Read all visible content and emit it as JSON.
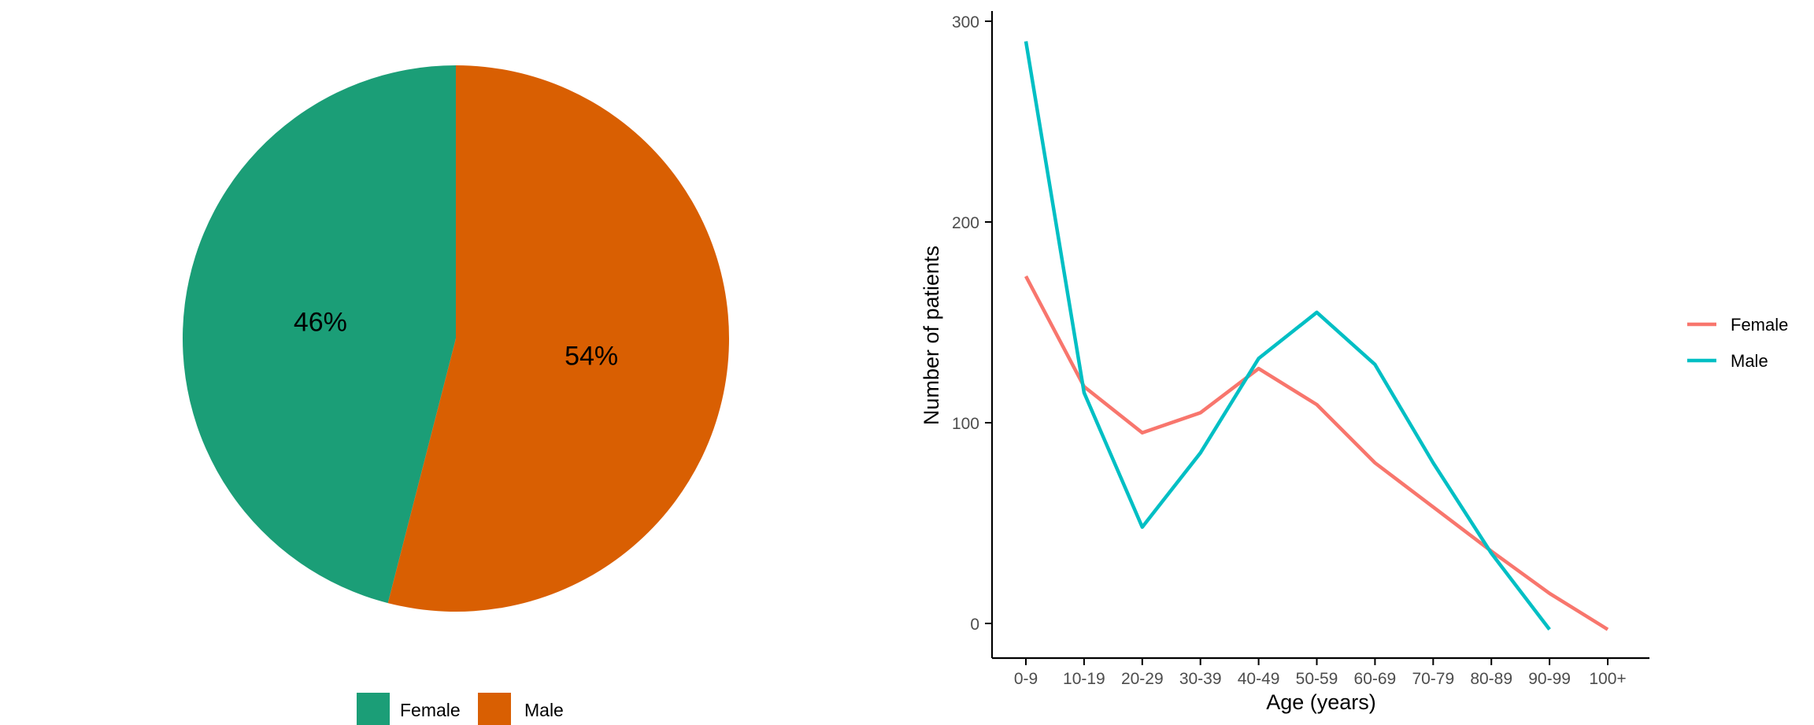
{
  "chart_data": [
    {
      "type": "pie",
      "categories": [
        "Female",
        "Male"
      ],
      "values": [
        46,
        54
      ],
      "labels": [
        "46%",
        "54%"
      ],
      "colors": [
        "#1b9e77",
        "#d95f02"
      ],
      "legend": {
        "position": "bottom",
        "entries": [
          "Female",
          "Male"
        ]
      }
    },
    {
      "type": "line",
      "xlabel": "Age (years)",
      "ylabel": "Number of patients",
      "categories": [
        "0-9",
        "10-19",
        "20-29",
        "30-39",
        "40-49",
        "50-59",
        "60-69",
        "70-79",
        "80-89",
        "90-99",
        "100+"
      ],
      "yticks": [
        "0",
        "100",
        "200",
        "300"
      ],
      "ylim": [
        -18,
        305
      ],
      "series": [
        {
          "name": "Female",
          "color": "#f8766d",
          "values": [
            173,
            118,
            95,
            105,
            127,
            109,
            80,
            58,
            36,
            15,
            -3
          ]
        },
        {
          "name": "Male",
          "color": "#00bfc4",
          "values": [
            290,
            115,
            48,
            85,
            132,
            155,
            129,
            80,
            35,
            -3,
            null
          ]
        }
      ],
      "legend": {
        "position": "right",
        "entries": [
          "Female",
          "Male"
        ]
      },
      "grid": false
    }
  ]
}
